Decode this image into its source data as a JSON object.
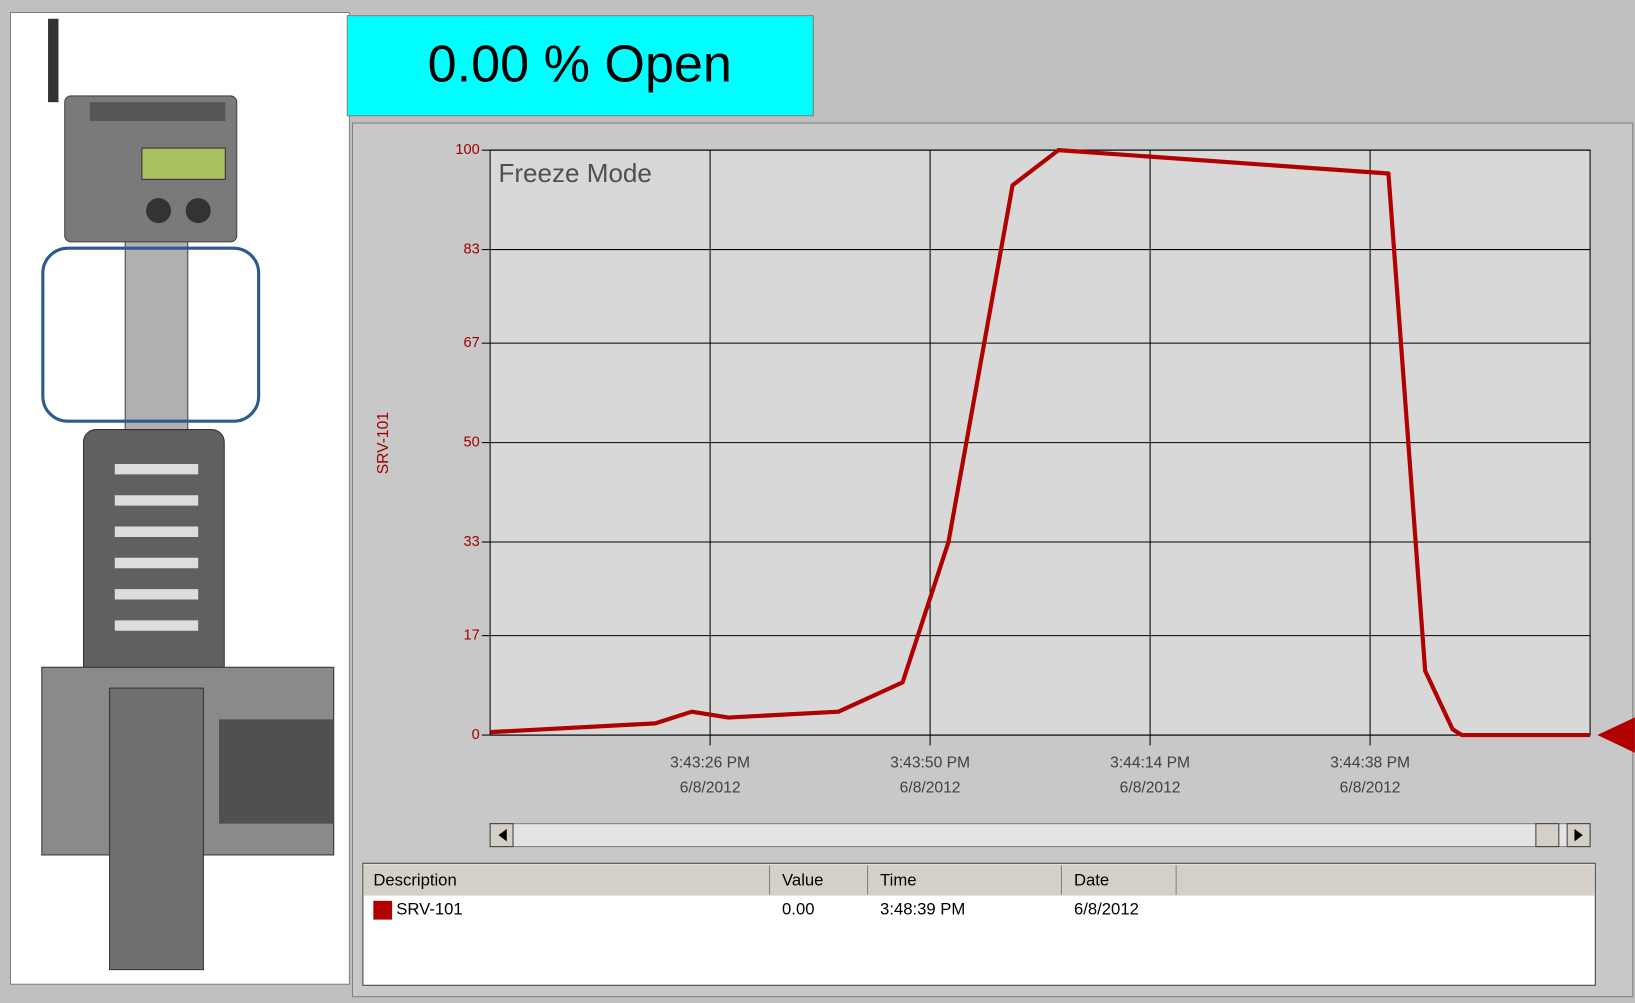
{
  "display": {
    "title": "0.00 % Open"
  },
  "chart_data": {
    "type": "line",
    "annotation": "Freeze Mode",
    "y_label": "SRV-101",
    "x": [
      "2012-06-08T15:43:02",
      "2012-06-08T15:43:20",
      "2012-06-08T15:43:24",
      "2012-06-08T15:43:28",
      "2012-06-08T15:43:40",
      "2012-06-08T15:43:47",
      "2012-06-08T15:43:52",
      "2012-06-08T15:43:59",
      "2012-06-08T15:44:04",
      "2012-06-08T15:44:40",
      "2012-06-08T15:44:44",
      "2012-06-08T15:44:47",
      "2012-06-08T15:44:48",
      "2012-06-08T15:45:02"
    ],
    "series": [
      {
        "name": "SRV-101",
        "color": "#b00000",
        "values": [
          0.5,
          2,
          4,
          3,
          4,
          9,
          33,
          94,
          100,
          96,
          11,
          1,
          0,
          0
        ]
      }
    ],
    "xlim": [
      "2012-06-08T15:43:02",
      "2012-06-08T15:45:02"
    ],
    "xticks": [
      {
        "value": "2012-06-08T15:43:26",
        "label": [
          "3:43:26 PM",
          "6/8/2012"
        ]
      },
      {
        "value": "2012-06-08T15:43:50",
        "label": [
          "3:43:50 PM",
          "6/8/2012"
        ]
      },
      {
        "value": "2012-06-08T15:44:14",
        "label": [
          "3:44:14 PM",
          "6/8/2012"
        ]
      },
      {
        "value": "2012-06-08T15:44:38",
        "label": [
          "3:44:38 PM",
          "6/8/2012"
        ]
      }
    ],
    "ylim": [
      0,
      100
    ],
    "yticks": [
      0,
      17,
      33,
      50,
      67,
      83,
      100
    ],
    "grid": true
  },
  "table": {
    "columns": [
      "Description",
      "Value",
      "Time",
      "Date"
    ],
    "rows": [
      [
        "SRV-101",
        "0.00",
        "3:48:39 PM",
        "6/8/2012"
      ]
    ]
  }
}
